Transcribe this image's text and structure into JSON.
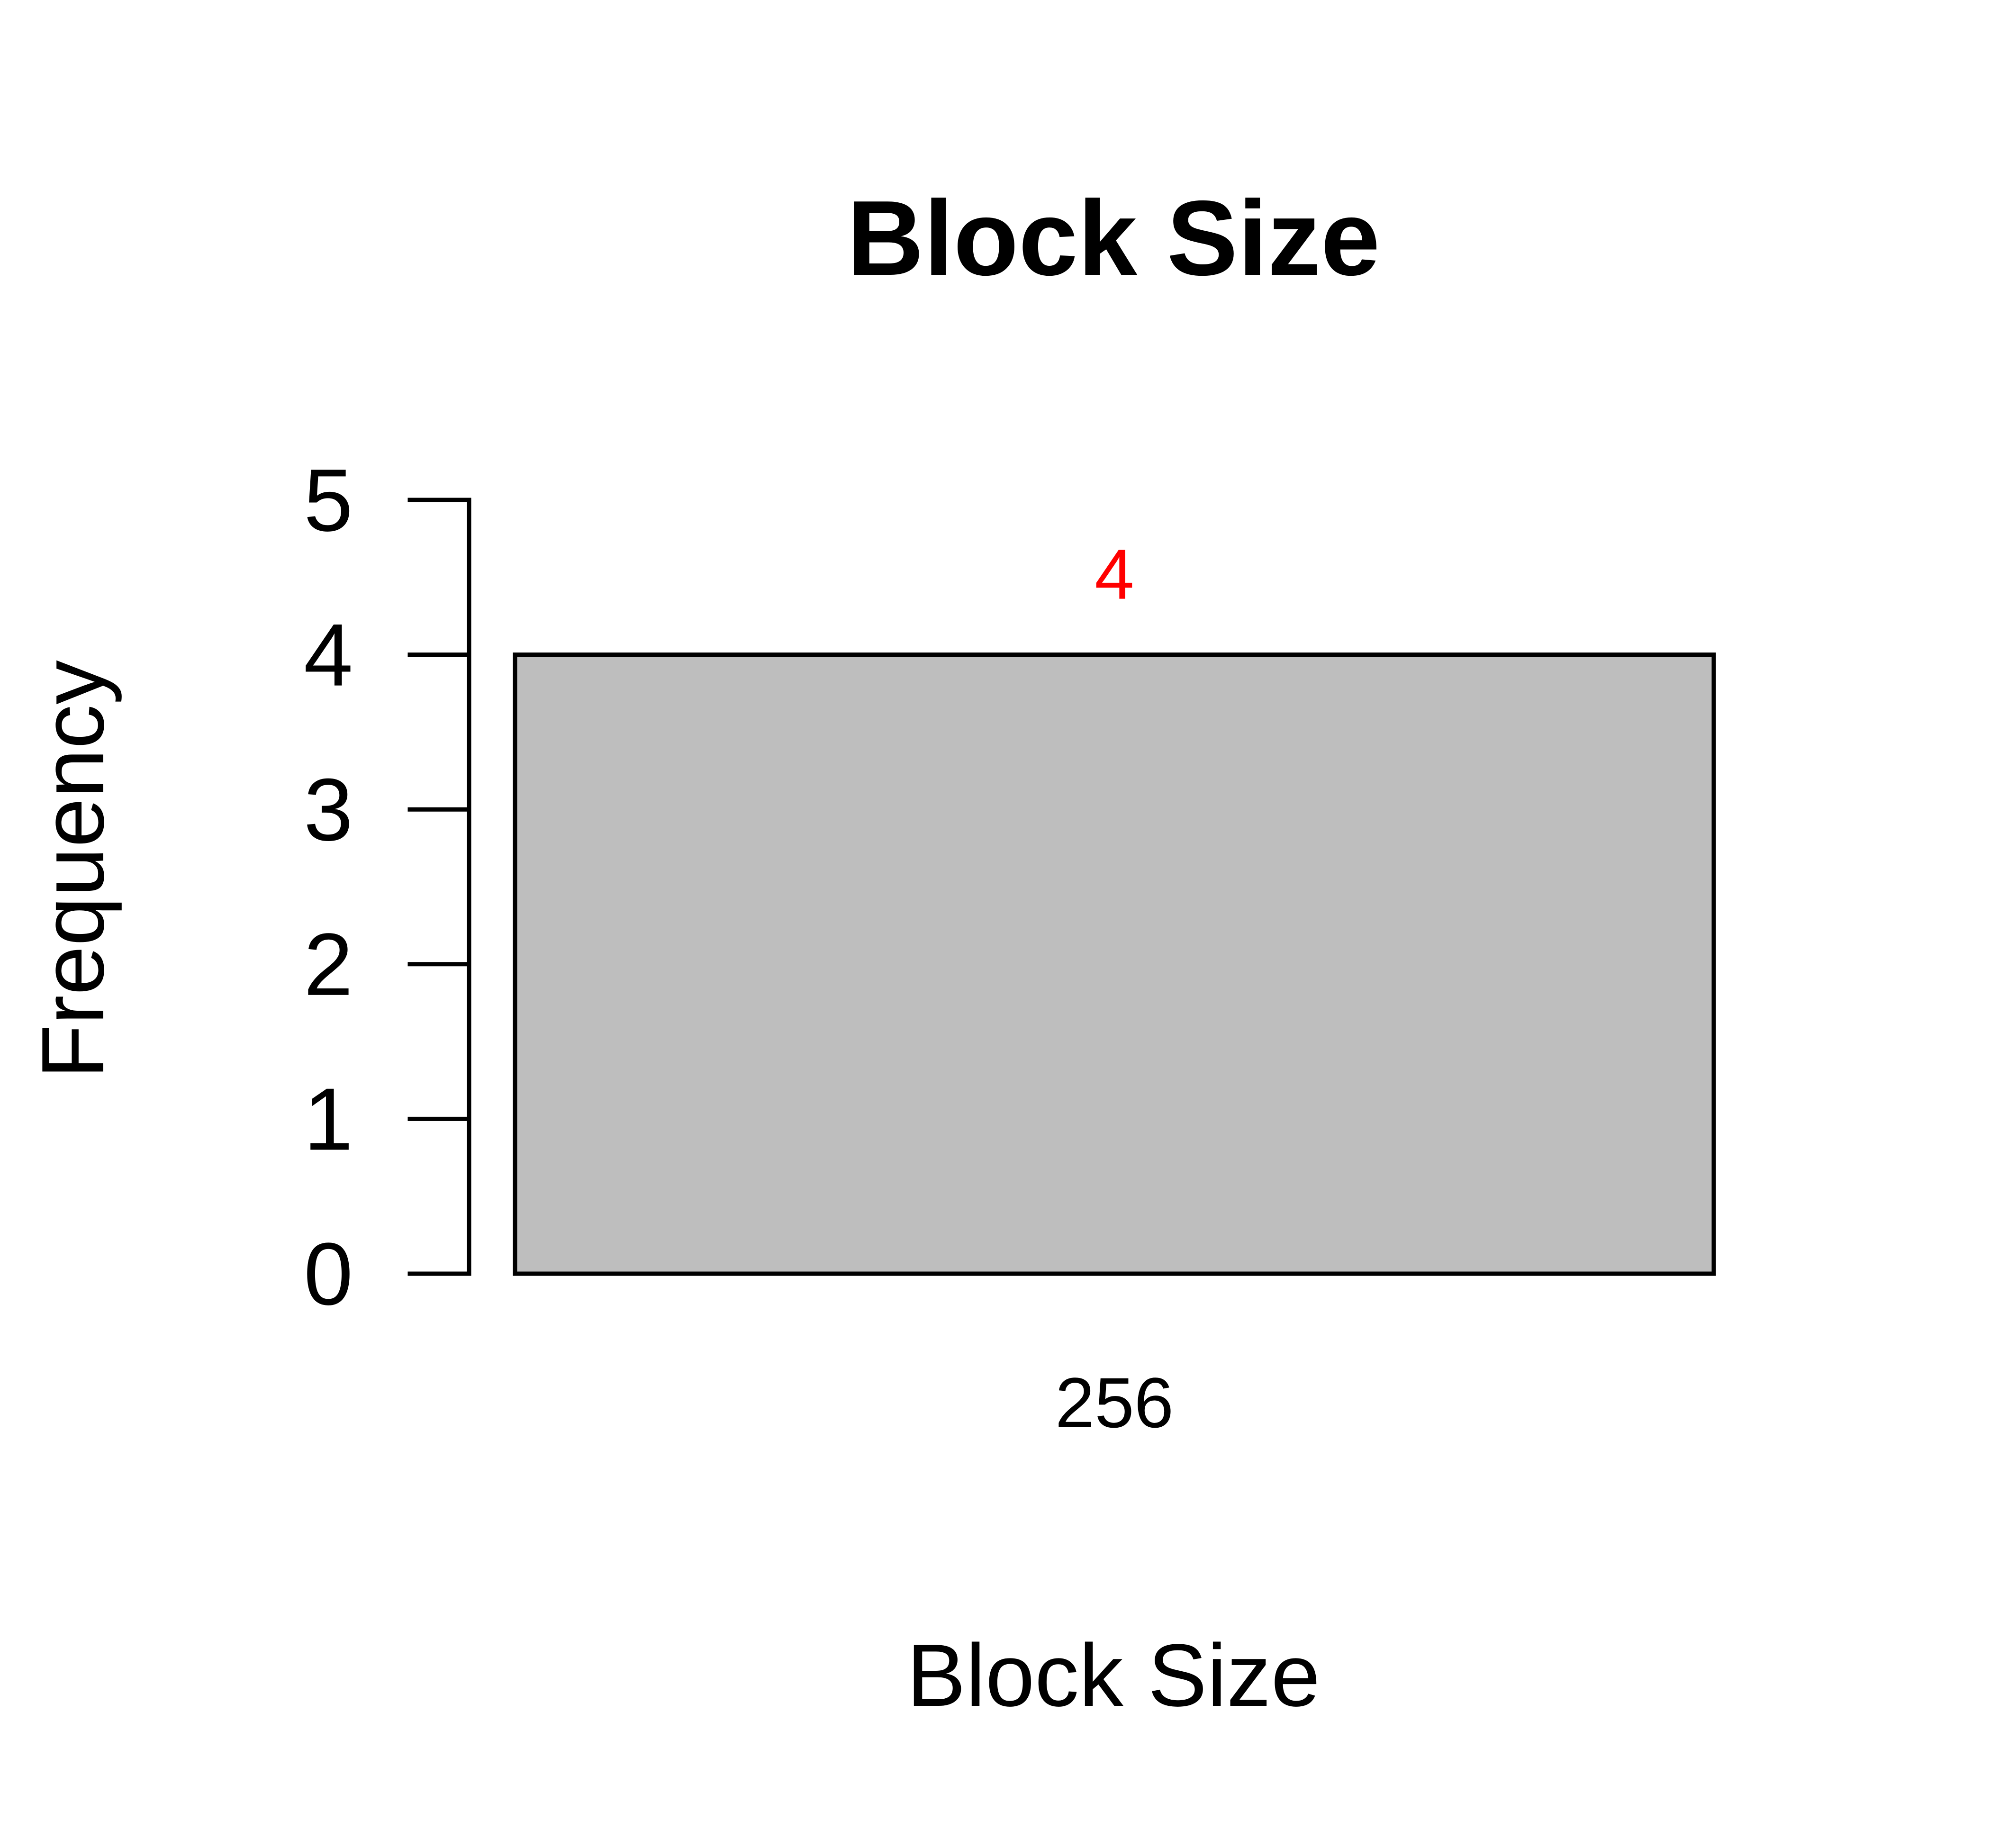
{
  "chart_data": {
    "type": "bar",
    "title": "Block Size",
    "xlabel": "Block Size",
    "ylabel": "Frequency",
    "categories": [
      "256"
    ],
    "values": [
      4
    ],
    "value_labels": [
      "4"
    ],
    "ylim": [
      0,
      5
    ],
    "yticks": [
      "0",
      "1",
      "2",
      "3",
      "4",
      "5"
    ],
    "grid": false,
    "legend": "none",
    "colors": {
      "bar_fill": "#bebebe",
      "bar_stroke": "#000000",
      "value_label": "#ff0000",
      "axis": "#000000"
    }
  }
}
